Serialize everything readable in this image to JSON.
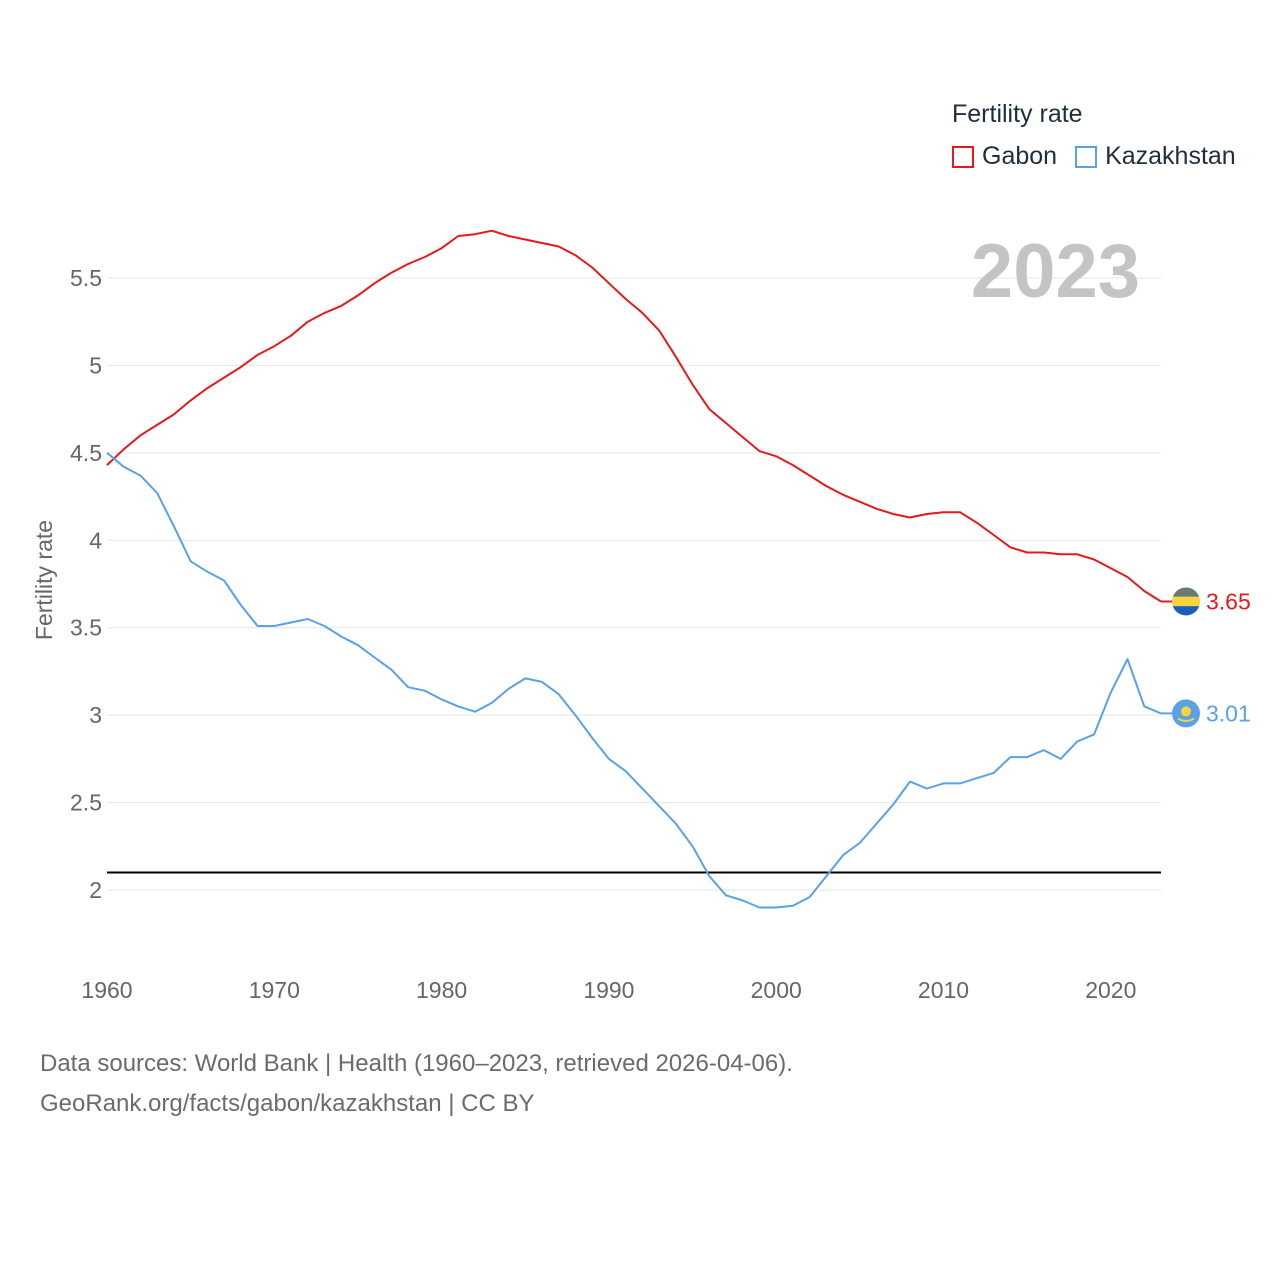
{
  "legend": {
    "title": "Fertility rate"
  },
  "year_label": "2023",
  "source": {
    "line1": "Data sources: World Bank | Health (1960–2023, retrieved 2026-04-06).",
    "line2": "GeoRank.org/facts/gabon/kazakhstan | CC BY"
  },
  "colors": {
    "gabon": "#e41a1c",
    "kazakhstan": "#5aa1e6",
    "reference": "#000000",
    "grid": "#e6e6e6"
  },
  "chart_data": {
    "type": "line",
    "title": "",
    "xlabel": "",
    "ylabel": "Fertility rate",
    "xlim": [
      1960,
      2023
    ],
    "ylim": [
      1.6,
      5.9
    ],
    "x_ticks": [
      1960,
      1970,
      1980,
      1990,
      2000,
      2010,
      2020
    ],
    "y_ticks": [
      2,
      2.5,
      3,
      3.5,
      4,
      4.5,
      5,
      5.5
    ],
    "y_tick_labels": [
      "2",
      "2.5",
      "3",
      "3.5",
      "4",
      "4.5",
      "5",
      "5.5"
    ],
    "reference_line": {
      "y": 2.1
    },
    "series": [
      {
        "name": "Gabon",
        "color_key": "gabon",
        "end_label": "3.65",
        "x": [
          1960,
          1961,
          1962,
          1963,
          1964,
          1965,
          1966,
          1967,
          1968,
          1969,
          1970,
          1971,
          1972,
          1973,
          1974,
          1975,
          1976,
          1977,
          1978,
          1979,
          1980,
          1981,
          1982,
          1983,
          1984,
          1985,
          1986,
          1987,
          1988,
          1989,
          1990,
          1991,
          1992,
          1993,
          1994,
          1995,
          1996,
          1997,
          1998,
          1999,
          2000,
          2001,
          2002,
          2003,
          2004,
          2005,
          2006,
          2007,
          2008,
          2009,
          2010,
          2011,
          2012,
          2013,
          2014,
          2015,
          2016,
          2017,
          2018,
          2019,
          2020,
          2021,
          2022,
          2023
        ],
        "values": [
          4.43,
          4.52,
          4.6,
          4.66,
          4.72,
          4.8,
          4.87,
          4.93,
          4.99,
          5.06,
          5.11,
          5.17,
          5.25,
          5.3,
          5.34,
          5.4,
          5.47,
          5.53,
          5.58,
          5.62,
          5.67,
          5.74,
          5.75,
          5.77,
          5.74,
          5.72,
          5.7,
          5.68,
          5.63,
          5.56,
          5.47,
          5.38,
          5.3,
          5.2,
          5.05,
          4.89,
          4.75,
          4.67,
          4.59,
          4.51,
          4.48,
          4.43,
          4.37,
          4.31,
          4.26,
          4.22,
          4.18,
          4.15,
          4.13,
          4.15,
          4.16,
          4.16,
          4.1,
          4.03,
          3.96,
          3.93,
          3.93,
          3.92,
          3.92,
          3.89,
          3.84,
          3.79,
          3.71,
          3.65
        ]
      },
      {
        "name": "Kazakhstan",
        "color_key": "kazakhstan",
        "end_label": "3.01",
        "x": [
          1960,
          1961,
          1962,
          1963,
          1964,
          1965,
          1966,
          1967,
          1968,
          1969,
          1970,
          1971,
          1972,
          1973,
          1974,
          1975,
          1976,
          1977,
          1978,
          1979,
          1980,
          1981,
          1982,
          1983,
          1984,
          1985,
          1986,
          1987,
          1988,
          1989,
          1990,
          1991,
          1992,
          1993,
          1994,
          1995,
          1996,
          1997,
          1998,
          1999,
          2000,
          2001,
          2002,
          2003,
          2004,
          2005,
          2006,
          2007,
          2008,
          2009,
          2010,
          2011,
          2012,
          2013,
          2014,
          2015,
          2016,
          2017,
          2018,
          2019,
          2020,
          2021,
          2022,
          2023
        ],
        "values": [
          4.5,
          4.42,
          4.37,
          4.27,
          4.08,
          3.88,
          3.82,
          3.77,
          3.63,
          3.51,
          3.51,
          3.53,
          3.55,
          3.51,
          3.45,
          3.4,
          3.33,
          3.26,
          3.16,
          3.14,
          3.09,
          3.05,
          3.02,
          3.07,
          3.15,
          3.21,
          3.19,
          3.12,
          3.0,
          2.87,
          2.75,
          2.68,
          2.58,
          2.48,
          2.38,
          2.25,
          2.08,
          1.97,
          1.94,
          1.9,
          1.9,
          1.91,
          1.96,
          2.08,
          2.2,
          2.27,
          2.38,
          2.49,
          2.62,
          2.58,
          2.61,
          2.61,
          2.64,
          2.67,
          2.76,
          2.76,
          2.8,
          2.75,
          2.85,
          2.89,
          3.13,
          3.32,
          3.05,
          3.01
        ]
      }
    ]
  }
}
